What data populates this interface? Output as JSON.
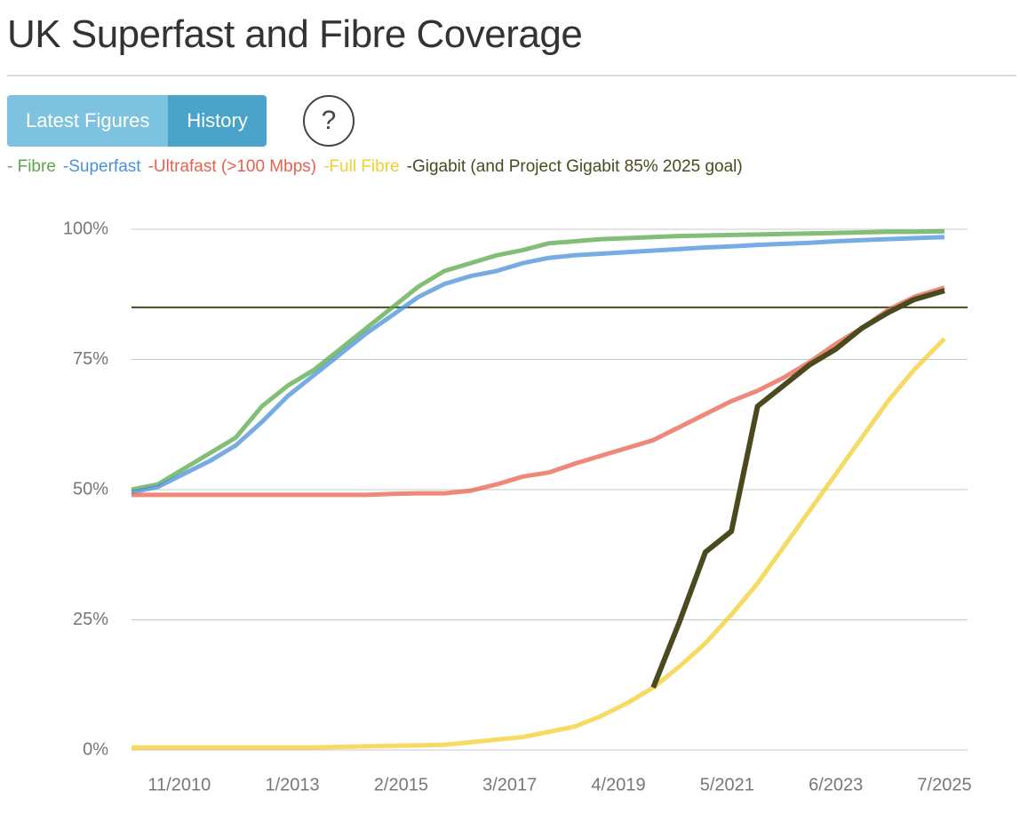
{
  "header": {
    "title": "UK Superfast and Fibre Coverage"
  },
  "tabs": [
    "Latest Figures",
    "History"
  ],
  "help_icon": "?",
  "chart_data": {
    "type": "line",
    "x": [
      "12/2009",
      "6/2010",
      "12/2010",
      "6/2011",
      "12/2011",
      "6/2012",
      "12/2012",
      "6/2013",
      "12/2013",
      "6/2014",
      "12/2014",
      "6/2015",
      "12/2015",
      "6/2016",
      "12/2016",
      "6/2017",
      "12/2017",
      "6/2018",
      "12/2018",
      "6/2019",
      "12/2019",
      "6/2020",
      "12/2020",
      "6/2021",
      "12/2021",
      "6/2022",
      "12/2022",
      "6/2023",
      "12/2023",
      "6/2024",
      "12/2024",
      "7/2025"
    ],
    "series": [
      {
        "name": "- Fibre",
        "color": "#5aa84a",
        "values": [
          50,
          51,
          54,
          57,
          60,
          66,
          70,
          73,
          77,
          81,
          85,
          89,
          92,
          93.5,
          95,
          96,
          97.3,
          97.7,
          98.1,
          98.3,
          98.5,
          98.7,
          98.8,
          98.9,
          99,
          99.1,
          99.2,
          99.3,
          99.4,
          99.5,
          99.5,
          99.6
        ]
      },
      {
        "name": "-Superfast",
        "color": "#4a90d9",
        "values": [
          49.5,
          50.5,
          53,
          55.5,
          58.5,
          63,
          68,
          72,
          76,
          80,
          83.5,
          87,
          89.5,
          91,
          92,
          93.5,
          94.5,
          95,
          95.3,
          95.6,
          95.9,
          96.2,
          96.5,
          96.7,
          97,
          97.2,
          97.4,
          97.7,
          97.9,
          98.1,
          98.3,
          98.5
        ]
      },
      {
        "name": "-Ultrafast (>100 Mbps)",
        "color": "#e8604c",
        "values": [
          49,
          49,
          49,
          49,
          49,
          49,
          49,
          49,
          49,
          49,
          49.2,
          49.3,
          49.3,
          49.8,
          51,
          52.5,
          53.3,
          55,
          56.5,
          58,
          59.5,
          62,
          64.5,
          67,
          69,
          71.5,
          74.5,
          78,
          81,
          84.5,
          87,
          88.8
        ]
      },
      {
        "name": "-Full Fibre",
        "color": "#f2cf2e",
        "values": [
          0.5,
          0.5,
          0.5,
          0.5,
          0.5,
          0.5,
          0.5,
          0.5,
          0.6,
          0.7,
          0.8,
          0.9,
          1,
          1.5,
          2,
          2.5,
          3.5,
          4.5,
          6.5,
          9,
          12,
          16,
          20.5,
          26,
          32,
          39,
          46,
          53,
          60,
          67,
          73,
          79
        ]
      },
      {
        "name": "-Gigabit (and Project Gigabit 85% 2025 goal)",
        "color": "#4a4a1e",
        "values": [
          null,
          null,
          null,
          null,
          null,
          null,
          null,
          null,
          null,
          null,
          null,
          null,
          null,
          null,
          null,
          null,
          null,
          null,
          null,
          null,
          12,
          24.5,
          38,
          42,
          66,
          70,
          74,
          77,
          81,
          84,
          86.5,
          88.2
        ]
      }
    ],
    "goal_line": {
      "value": 85,
      "color": "#4a4a1e"
    },
    "xlim": [
      "12/2009",
      "7/2025"
    ],
    "xticks": [
      "11/2010",
      "1/2013",
      "2/2015",
      "3/2017",
      "4/2019",
      "5/2021",
      "6/2023",
      "7/2025"
    ],
    "ylim": [
      0,
      100
    ],
    "yticks": [
      {
        "value": 0,
        "label": "0%"
      },
      {
        "value": 25,
        "label": "25%"
      },
      {
        "value": 50,
        "label": "50%"
      },
      {
        "value": 75,
        "label": "75%"
      },
      {
        "value": 100,
        "label": "100%"
      }
    ],
    "grid": true
  }
}
